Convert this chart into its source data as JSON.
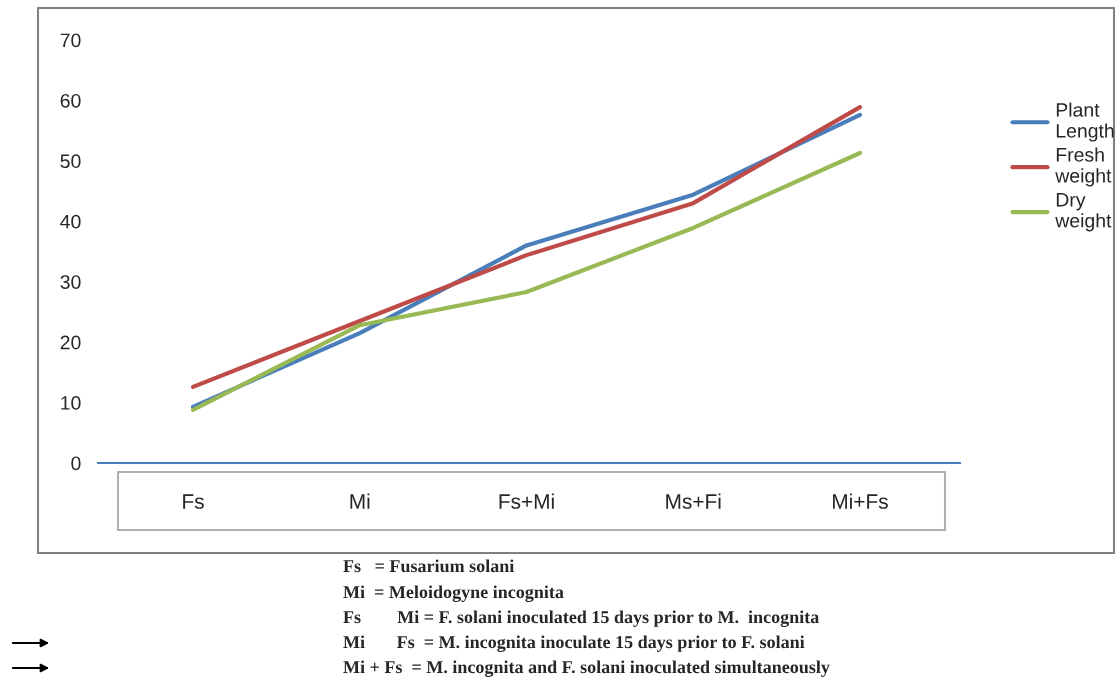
{
  "chart_data": {
    "type": "line",
    "categories": [
      "Fs",
      "Mi",
      "Fs+Mi",
      "Ms+Fi",
      "Mi+Fs"
    ],
    "series": [
      {
        "name": "Plant Length",
        "color": "#4a7ebb",
        "values": [
          9.3,
          21.5,
          36,
          44.4,
          57.6
        ]
      },
      {
        "name": "Fresh weight",
        "color": "#be4b48",
        "values": [
          12.6,
          23.5,
          34.4,
          43,
          58.9
        ]
      },
      {
        "name": "Dry weight",
        "color": "#98b954",
        "values": [
          8.8,
          22.8,
          28.3,
          38.9,
          51.3
        ]
      }
    ],
    "ylim": [
      0,
      70
    ],
    "yticks": [
      0,
      10,
      20,
      30,
      40,
      50,
      60,
      70
    ],
    "grid": false,
    "legend": "right",
    "marker": "none",
    "line_style": "solid",
    "annotations": [
      "Fs   = Fusarium solani",
      "Mi  = Meloidogyne incognita",
      "Fs        Mi = F. solani inoculated 15 days prior to M.  incognita",
      "Mi       Fs  = M. incognita inoculate 15 days prior to F. solani",
      "Mi + Fs  = M. incognita and F. solani inoculated simultaneously"
    ]
  }
}
